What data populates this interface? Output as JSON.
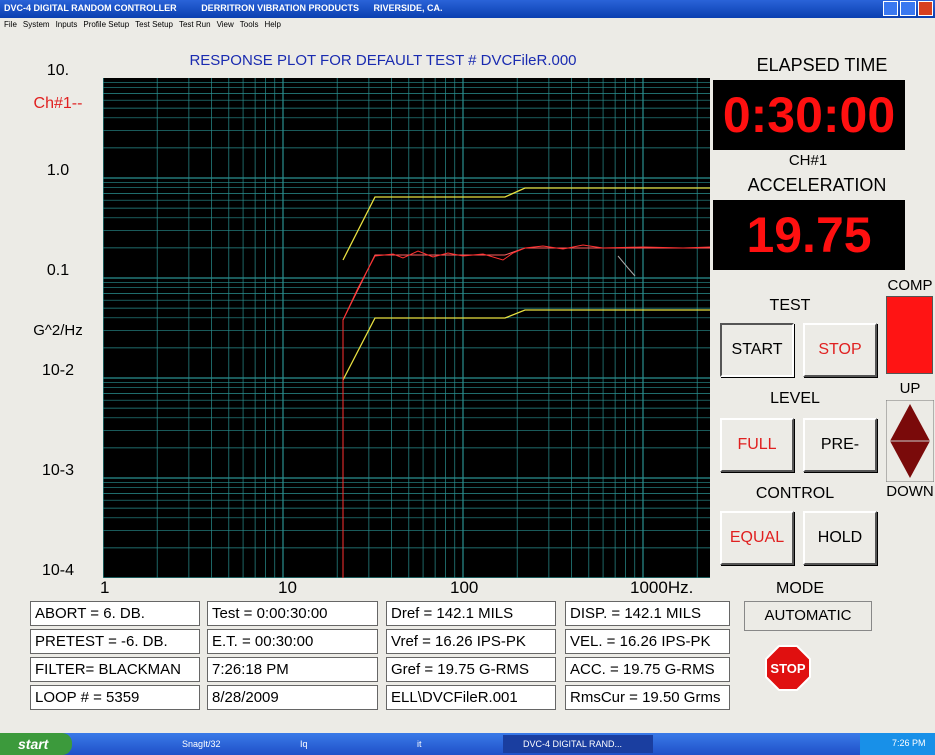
{
  "window": {
    "title": [
      "DVC-4 DIGITAL RANDOM CONTROLLER",
      "DERRITRON VIBRATION PRODUCTS",
      "RIVERSIDE, CA."
    ]
  },
  "menu": [
    "File",
    "System",
    "Inputs",
    "Profile Setup",
    "Test Setup",
    "Test Run",
    "View",
    "Tools",
    "Help"
  ],
  "plot": {
    "title": "RESPONSE PLOT FOR DEFAULT TEST # DVCFileR.000",
    "channel": "Ch#1--",
    "y_unit": "G^2/Hz",
    "yticks": [
      "10.",
      "1.0",
      "0.1",
      "10-2",
      "10-3",
      "10-4"
    ],
    "xticks": [
      "1",
      "10",
      "100",
      "1000Hz."
    ]
  },
  "elapsed": {
    "label": "ELAPSED TIME",
    "value": "0:30:00"
  },
  "accel": {
    "channel": "CH#1",
    "label": "ACCELERATION",
    "value": "19.75"
  },
  "comp": "COMP",
  "up": "UP",
  "down": "DOWN",
  "test": {
    "label": "TEST",
    "start": "START",
    "stop": "STOP"
  },
  "level": {
    "label": "LEVEL",
    "full": "FULL",
    "pre": "PRE-"
  },
  "control": {
    "label": "CONTROL",
    "equal": "EQUAL",
    "hold": "HOLD"
  },
  "mode": {
    "label": "MODE",
    "value": "AUTOMATIC"
  },
  "stop_sign": "STOP",
  "status": [
    [
      "ABORT = 6. DB.",
      "PRETEST = -6. DB.",
      "FILTER= BLACKMAN",
      "LOOP # = 5359"
    ],
    [
      "Test =  0:00:30:00",
      "E.T. = 00:30:00",
      "7:26:18 PM",
      "8/28/2009"
    ],
    [
      "Dref = 142.1 MILS",
      "Vref = 16.26 IPS-PK",
      "Gref = 19.75 G-RMS",
      "ELL\\DVCFileR.001"
    ],
    [
      "DISP. = 142.1 MILS",
      "VEL. = 16.26 IPS-PK",
      "ACC. = 19.75 G-RMS",
      "RmsCur = 19.50 Grms"
    ]
  ],
  "taskbar": {
    "start": "start",
    "items": [
      "SnagIt/32",
      "Iq",
      "it",
      "DVC-4 DIGITAL RAND..."
    ],
    "clock": "7:26 PM"
  }
}
